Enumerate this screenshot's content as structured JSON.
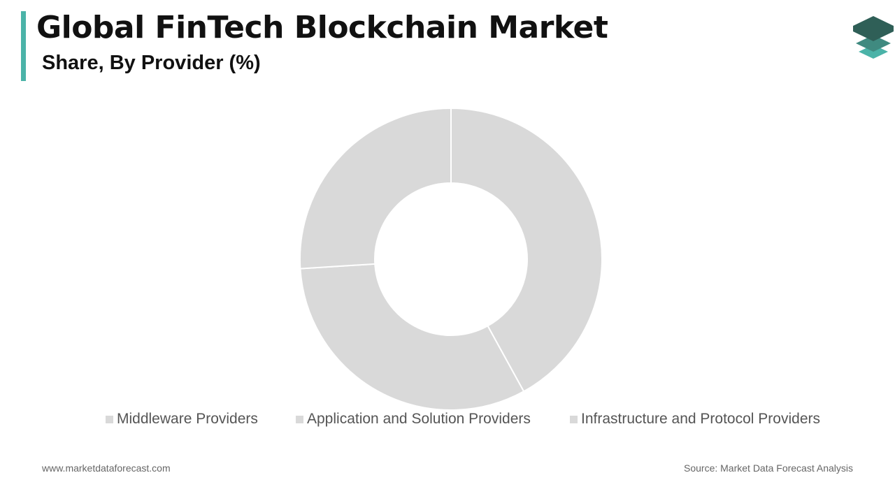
{
  "header": {
    "title": "Global FinTech Blockchain Market",
    "subtitle": "Share, By Provider (%)",
    "accent_color": "#4bb3a8"
  },
  "logo": {
    "icon": "layered-stack-logo-icon",
    "colors": [
      "#2f5f57",
      "#3f8a80",
      "#4bb3a8"
    ]
  },
  "chart_data": {
    "type": "pie",
    "variant": "donut",
    "title": "",
    "categories": [
      "Middleware Providers",
      "Application and Solution Providers",
      "Infrastructure and Protocol Providers"
    ],
    "values": [
      42,
      32,
      26
    ],
    "colors": [
      "#d9d9d9",
      "#d9d9d9",
      "#d9d9d9"
    ],
    "legend_position": "bottom",
    "data_labels": false
  },
  "footer": {
    "website": "www.marketdataforecast.com",
    "source": "Source: Market Data Forecast Analysis"
  }
}
